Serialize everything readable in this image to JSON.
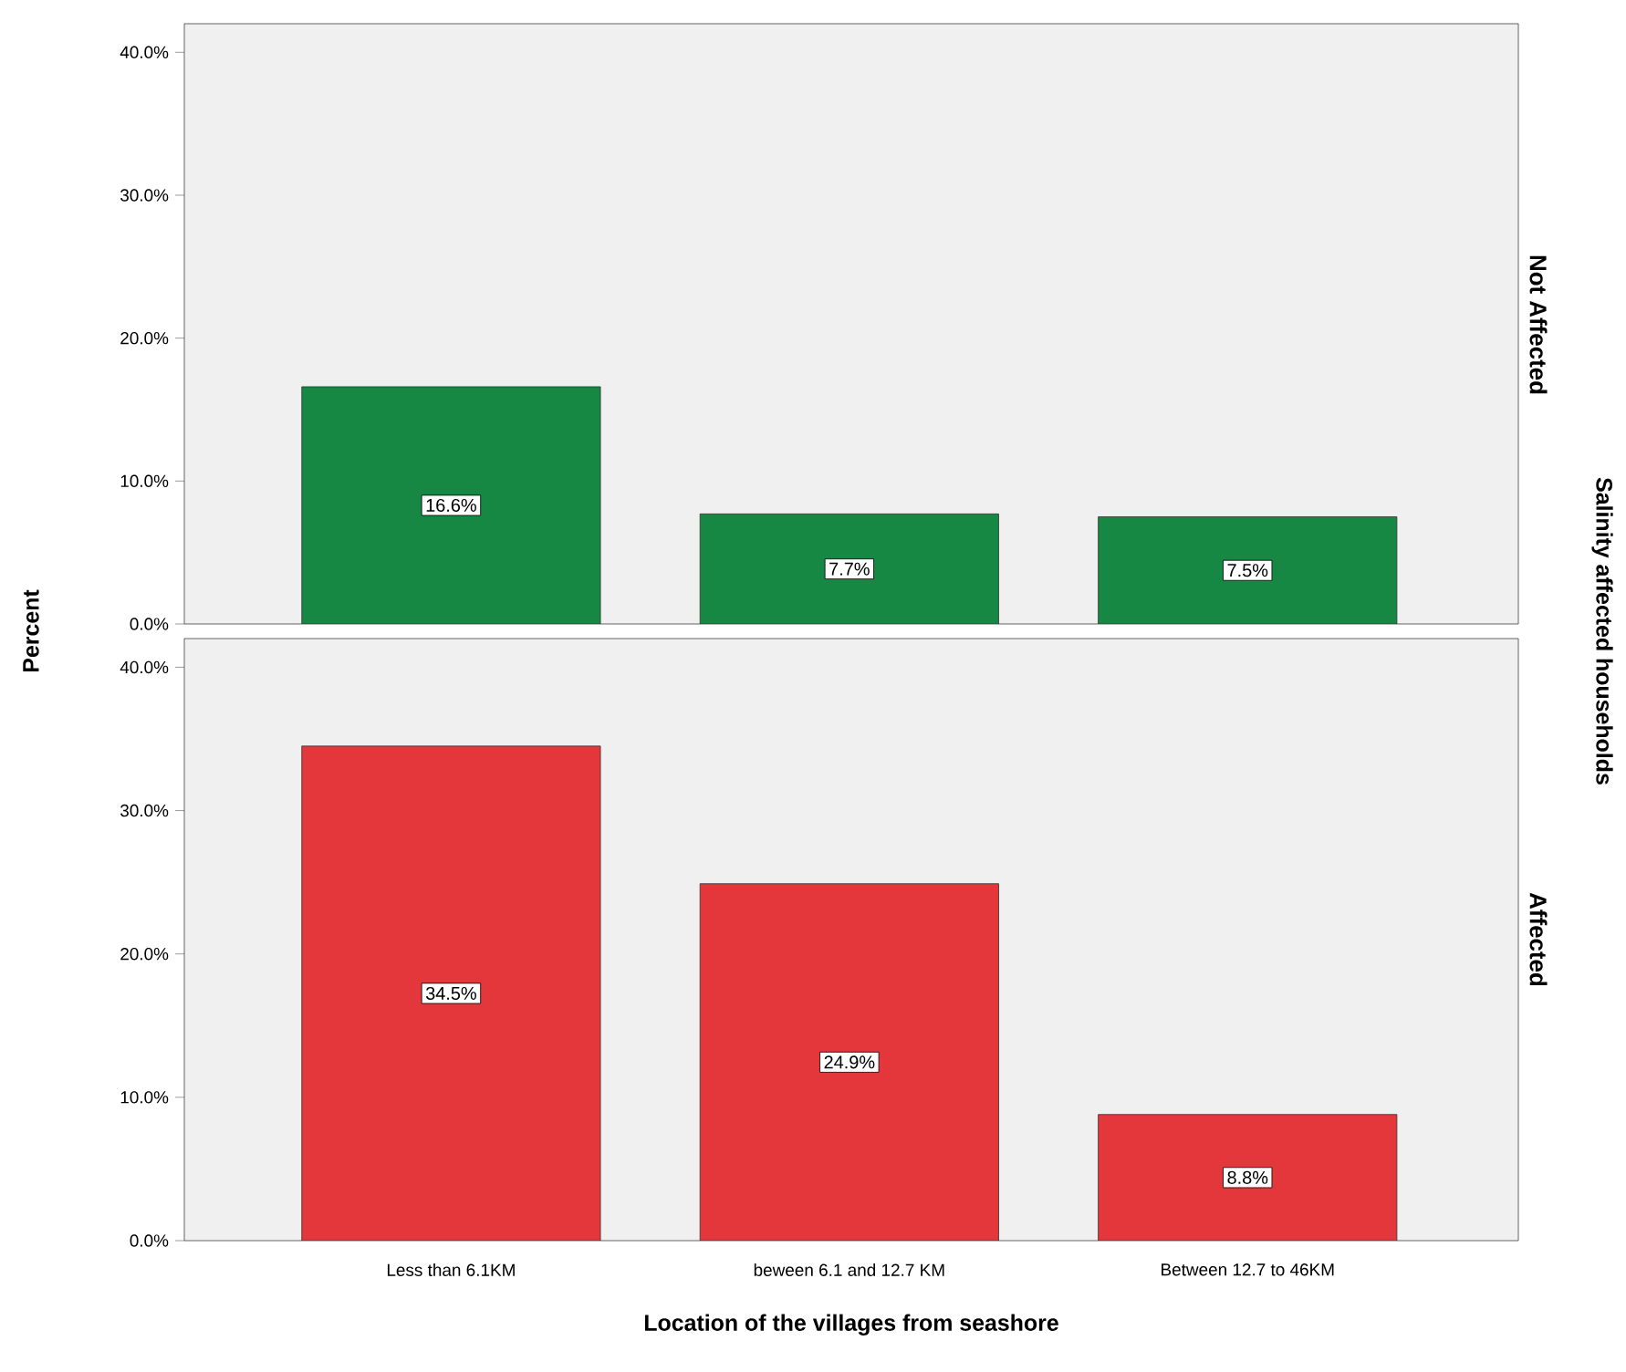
{
  "chart_data": [
    {
      "type": "bar",
      "title": "Not Affected",
      "ylabel": "Percent",
      "y2label": "Salinity affected households",
      "categories": [
        null,
        null,
        null
      ],
      "values": [
        16.6,
        7.7,
        7.5
      ],
      "value_labels": [
        "16.6%",
        "7.7%",
        "7.5%"
      ],
      "color": "#168844",
      "ylim": [
        0,
        42
      ],
      "yticks": [
        {
          "value": 0,
          "label": "0.0%"
        },
        {
          "value": 10,
          "label": "10.0%"
        },
        {
          "value": 20,
          "label": "20.0%"
        },
        {
          "value": 30,
          "label": "30.0%"
        },
        {
          "value": 40,
          "label": "40.0%"
        }
      ],
      "tick_labels": "y"
    },
    {
      "type": "bar",
      "title": "Affected",
      "xlabel": "Location of the villages from seashore",
      "categories": [
        "Less than 6.1KM",
        "beween 6.1 and 12.7 KM",
        "Between 12.7 to 46KM"
      ],
      "values": [
        34.5,
        24.9,
        8.8
      ],
      "value_labels": [
        "34.5%",
        "24.9%",
        "8.8%"
      ],
      "color": "#e3373b",
      "ylim": [
        0,
        42
      ],
      "yticks": [
        {
          "value": 0,
          "label": "0.0%"
        },
        {
          "value": 10,
          "label": "10.0%"
        },
        {
          "value": 20,
          "label": "20.0%"
        },
        {
          "value": 30,
          "label": "30.0%"
        },
        {
          "value": 40,
          "label": "40.0%"
        }
      ]
    }
  ]
}
